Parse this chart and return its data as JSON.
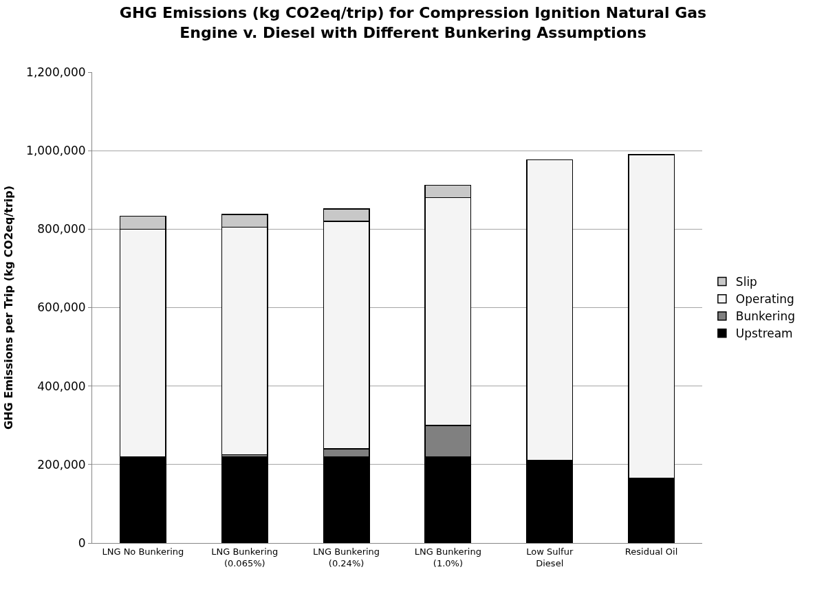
{
  "chart_data": {
    "type": "bar",
    "stacked": true,
    "title": "GHG Emissions (kg CO2eq/trip) for Compression Ignition Natural Gas Engine v. Diesel with Different Bunkering Assumptions",
    "ylabel": "GHG Emissions per Trip (kg CO2eq/trip)",
    "categories": [
      "LNG No Bunkering",
      "LNG Bunkering (0.065%)",
      "LNG Bunkering (0.24%)",
      "LNG Bunkering (1.0%)",
      "Low Sulfur Diesel",
      "Residual Oil"
    ],
    "series": [
      {
        "name": "Upstream",
        "color": "#000000",
        "values": [
          220000,
          220000,
          220000,
          220000,
          210000,
          165000
        ]
      },
      {
        "name": "Bunkering",
        "color": "#808080",
        "values": [
          null,
          5000,
          20000,
          80000,
          null,
          null
        ]
      },
      {
        "name": "Operating",
        "color": "#f4f4f4",
        "values": [
          580000,
          580000,
          580000,
          580000,
          767000,
          825000
        ]
      },
      {
        "name": "Slip",
        "color": "#c8c8c8",
        "values": [
          33000,
          32000,
          31000,
          32000,
          null,
          null
        ]
      }
    ],
    "ylim": [
      0,
      1200000
    ],
    "yticks": [
      {
        "value": 0,
        "label": "0"
      },
      {
        "value": 200000,
        "label": "200,000"
      },
      {
        "value": 400000,
        "label": "400,000"
      },
      {
        "value": 600000,
        "label": "600,000"
      },
      {
        "value": 800000,
        "label": "800,000"
      },
      {
        "value": 1000000,
        "label": "1,000,000"
      },
      {
        "value": 1200000,
        "label": "1,200,000"
      }
    ],
    "grid": "y",
    "legend": "right"
  }
}
